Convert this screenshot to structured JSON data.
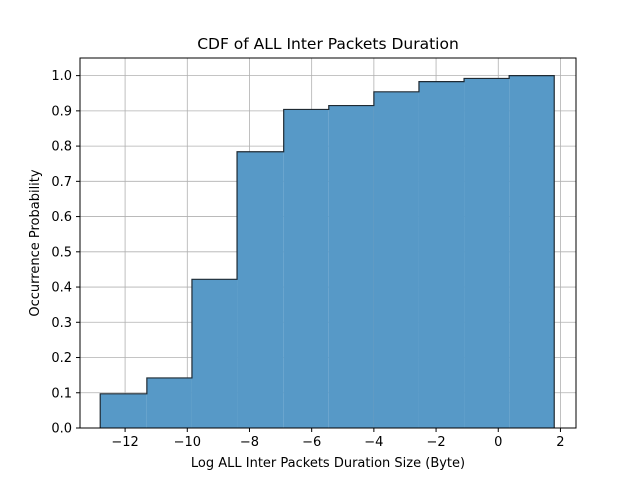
{
  "chart_data": {
    "type": "bar",
    "subtype": "cumulative-histogram",
    "title": "CDF of ALL Inter Packets Duration",
    "xlabel": "Log ALL Inter Packets Duration Size (Byte)",
    "ylabel": "Occurrence Probability",
    "xlim": [
      -13.45,
      2.5
    ],
    "ylim": [
      0,
      1.05
    ],
    "x_ticks": [
      -12,
      -10,
      -8,
      -6,
      -4,
      -2,
      0,
      2
    ],
    "x_tick_labels": [
      "−12",
      "−10",
      "−8",
      "−6",
      "−4",
      "−2",
      "0",
      "2"
    ],
    "y_ticks": [
      0.0,
      0.1,
      0.2,
      0.3,
      0.4,
      0.5,
      0.6,
      0.7,
      0.8,
      0.9,
      1.0
    ],
    "y_tick_labels": [
      "0.0",
      "0.1",
      "0.2",
      "0.3",
      "0.4",
      "0.5",
      "0.6",
      "0.7",
      "0.8",
      "0.9",
      "1.0"
    ],
    "bin_edges": [
      -12.8,
      -11.3,
      -9.85,
      -8.4,
      -6.9,
      -5.45,
      -4.0,
      -2.55,
      -1.1,
      0.35,
      1.8
    ],
    "values": [
      0.097,
      0.142,
      0.422,
      0.784,
      0.904,
      0.915,
      0.954,
      0.983,
      0.992,
      1.0
    ],
    "grid": true,
    "bar_color": "#5799c7",
    "edge_color": "#1f2a33"
  }
}
